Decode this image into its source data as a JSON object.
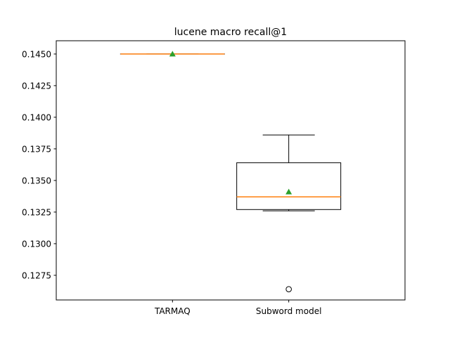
{
  "chart_data": {
    "type": "box",
    "title": "lucene macro recall@1",
    "xlabel": "",
    "ylabel": "",
    "ylim": [
      0.12555,
      0.14605
    ],
    "yticks": [
      "0.1275",
      "0.1300",
      "0.1325",
      "0.1350",
      "0.1375",
      "0.1400",
      "0.1425",
      "0.1450"
    ],
    "grid": false,
    "categories": [
      "TARMAQ",
      "Subword model"
    ],
    "boxes": [
      {
        "label": "TARMAQ",
        "whisker_low": 0.145,
        "q1": 0.145,
        "median": 0.145,
        "q3": 0.145,
        "whisker_high": 0.145,
        "mean": 0.145,
        "outliers": []
      },
      {
        "label": "Subword model",
        "whisker_low": 0.1326,
        "q1": 0.1327,
        "median": 0.1337,
        "q3": 0.1364,
        "whisker_high": 0.1386,
        "mean": 0.1341,
        "outliers": [
          0.1264
        ]
      }
    ],
    "colors": {
      "box": "#000000",
      "median": "#ff7f0e",
      "mean": "#2ca02c"
    }
  }
}
